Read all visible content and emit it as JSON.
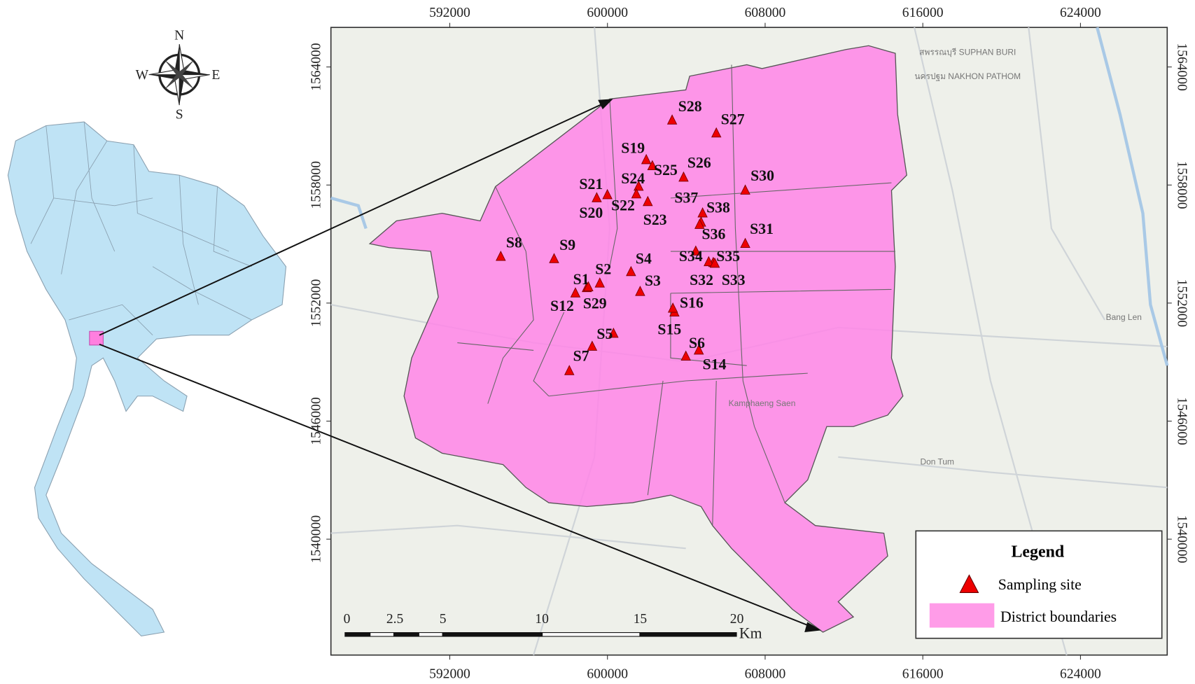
{
  "map_data": {
    "xlim": [
      585970,
      628400
    ],
    "ylim": [
      1534110,
      1566010
    ],
    "xticks": [
      592000,
      600000,
      608000,
      616000,
      624000
    ],
    "yticks": [
      1564000,
      1558000,
      1552000,
      1546000,
      1540000
    ],
    "sites": [
      "S28",
      "S27",
      "S19",
      "S25",
      "S26",
      "S24",
      "S30",
      "S21",
      "S22",
      "S20",
      "S37",
      "S38",
      "S23",
      "S36",
      "S31",
      "S8",
      "S9",
      "S4",
      "S34",
      "S35",
      "S2",
      "S1",
      "S3",
      "S32",
      "S33",
      "S12",
      "S29",
      "S16",
      "S15",
      "S5",
      "S6",
      "S7",
      "S14"
    ],
    "scale_bar": {
      "labels": [
        "0",
        "2.5",
        "5",
        "10",
        "15",
        "20"
      ],
      "unit": "Km"
    },
    "compass": {
      "n": "N",
      "e": "E",
      "s": "S",
      "w": "W"
    },
    "legend": {
      "title": "Legend",
      "items": [
        "Sampling site",
        "District boundaries"
      ]
    },
    "basemap_labels": [
      "สพรรณบุรี SUPHAN BURI",
      "นครปฐม NAKHON PATHOM",
      "Kamphaeng Saen",
      "Don Tum",
      "Bang Len"
    ]
  }
}
